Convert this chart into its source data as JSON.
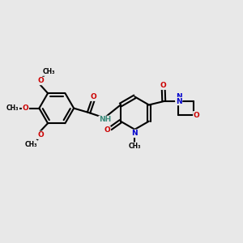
{
  "bg_color": "#e8e8e8",
  "bond_color": "#000000",
  "bond_width": 1.5,
  "fs": 6.5,
  "N_color": "#0000cc",
  "O_color": "#cc0000",
  "H_color": "#3a8a7a",
  "dpi": 100,
  "xlim": [
    0,
    10
  ],
  "ylim": [
    0,
    10
  ]
}
